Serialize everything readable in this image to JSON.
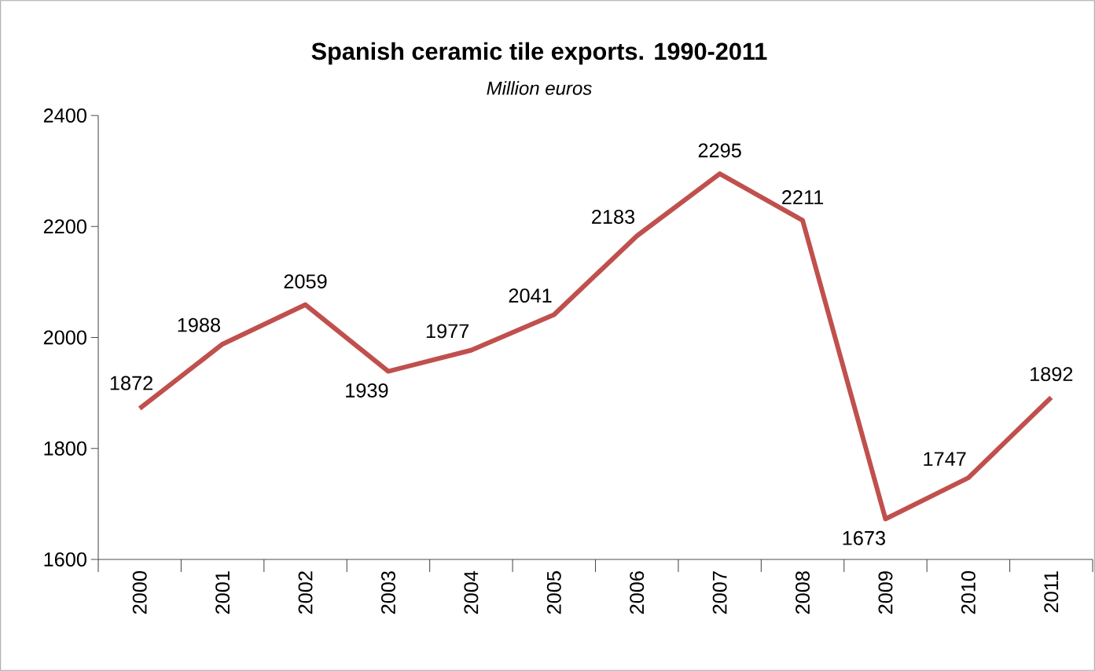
{
  "chart_data": {
    "type": "line",
    "title": "Spanish ceramic tile exports. 1990-2011",
    "subtitle": "Million euros",
    "categories": [
      "2000",
      "2001",
      "2002",
      "2003",
      "2004",
      "2005",
      "2006",
      "2007",
      "2008",
      "2009",
      "2010",
      "2011"
    ],
    "values": [
      1872,
      1988,
      2059,
      1939,
      1977,
      2041,
      2183,
      2295,
      2211,
      1673,
      1747,
      1892
    ],
    "color": "#c0504d",
    "ylim": [
      1600,
      2400
    ],
    "yticks": [
      1600,
      1800,
      2000,
      2200,
      2400
    ],
    "data_labels": true
  }
}
